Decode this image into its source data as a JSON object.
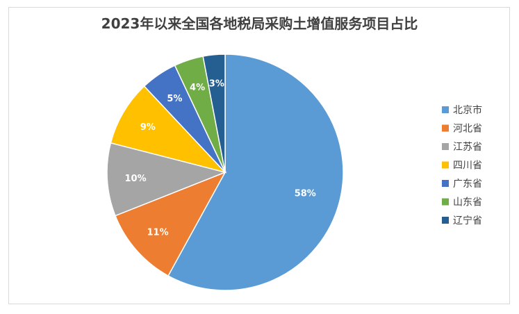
{
  "chart_data": {
    "type": "pie",
    "title": "2023年以来全国各地税局采购土增值服务项目占比",
    "categories": [
      "北京市",
      "河北省",
      "江苏省",
      "四川省",
      "广东省",
      "山东省",
      "辽宁省"
    ],
    "values": [
      58,
      11,
      10,
      9,
      5,
      4,
      3
    ],
    "labels": [
      "58%",
      "11%",
      "10%",
      "9%",
      "5%",
      "4%",
      "3%"
    ],
    "colors": [
      "#5b9bd5",
      "#ed7d31",
      "#a5a5a5",
      "#ffc000",
      "#4472c4",
      "#70ad47",
      "#255e91"
    ],
    "legend_position": "right"
  }
}
